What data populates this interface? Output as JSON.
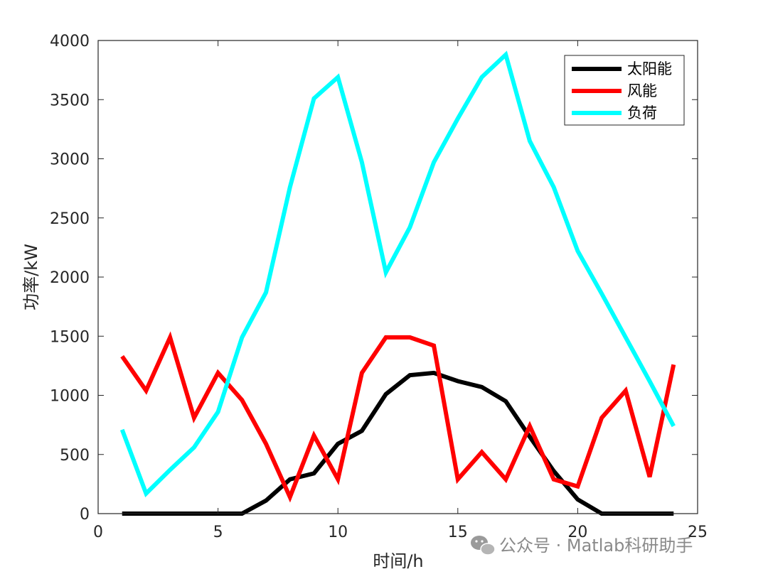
{
  "chart_data": {
    "type": "line",
    "title": "",
    "xlabel": "时间/h",
    "ylabel": "功率/kW",
    "xlim": [
      0,
      25
    ],
    "ylim": [
      0,
      4000
    ],
    "xticks": [
      0,
      5,
      10,
      15,
      20,
      25
    ],
    "yticks": [
      0,
      500,
      1000,
      1500,
      2000,
      2500,
      3000,
      3500,
      4000
    ],
    "grid": false,
    "legend_position": "top-right",
    "x": [
      1,
      2,
      3,
      4,
      5,
      6,
      7,
      8,
      9,
      10,
      11,
      12,
      13,
      14,
      15,
      16,
      17,
      18,
      19,
      20,
      21,
      22,
      23,
      24
    ],
    "series": [
      {
        "name": "太阳能",
        "color": "#000000",
        "values": [
          0,
          0,
          0,
          0,
          0,
          0,
          110,
          290,
          340,
          590,
          700,
          1010,
          1170,
          1190,
          1120,
          1070,
          950,
          650,
          360,
          120,
          0,
          0,
          0,
          0
        ]
      },
      {
        "name": "风能",
        "color": "#ff0000",
        "values": [
          1330,
          1040,
          1490,
          810,
          1190,
          960,
          590,
          140,
          660,
          290,
          1190,
          1490,
          1490,
          1420,
          290,
          520,
          290,
          740,
          290,
          230,
          810,
          1040,
          310,
          1260
        ]
      },
      {
        "name": "负荷",
        "color": "#00ffff",
        "values": [
          710,
          170,
          370,
          560,
          860,
          1490,
          1870,
          2760,
          3510,
          3690,
          2970,
          2040,
          2420,
          2970,
          3340,
          3690,
          3880,
          3150,
          2760,
          2220,
          1860,
          1490,
          1120,
          740
        ]
      }
    ]
  },
  "watermark": {
    "icon": "wechat-icon",
    "text": "公众号 · Matlab科研助手"
  }
}
